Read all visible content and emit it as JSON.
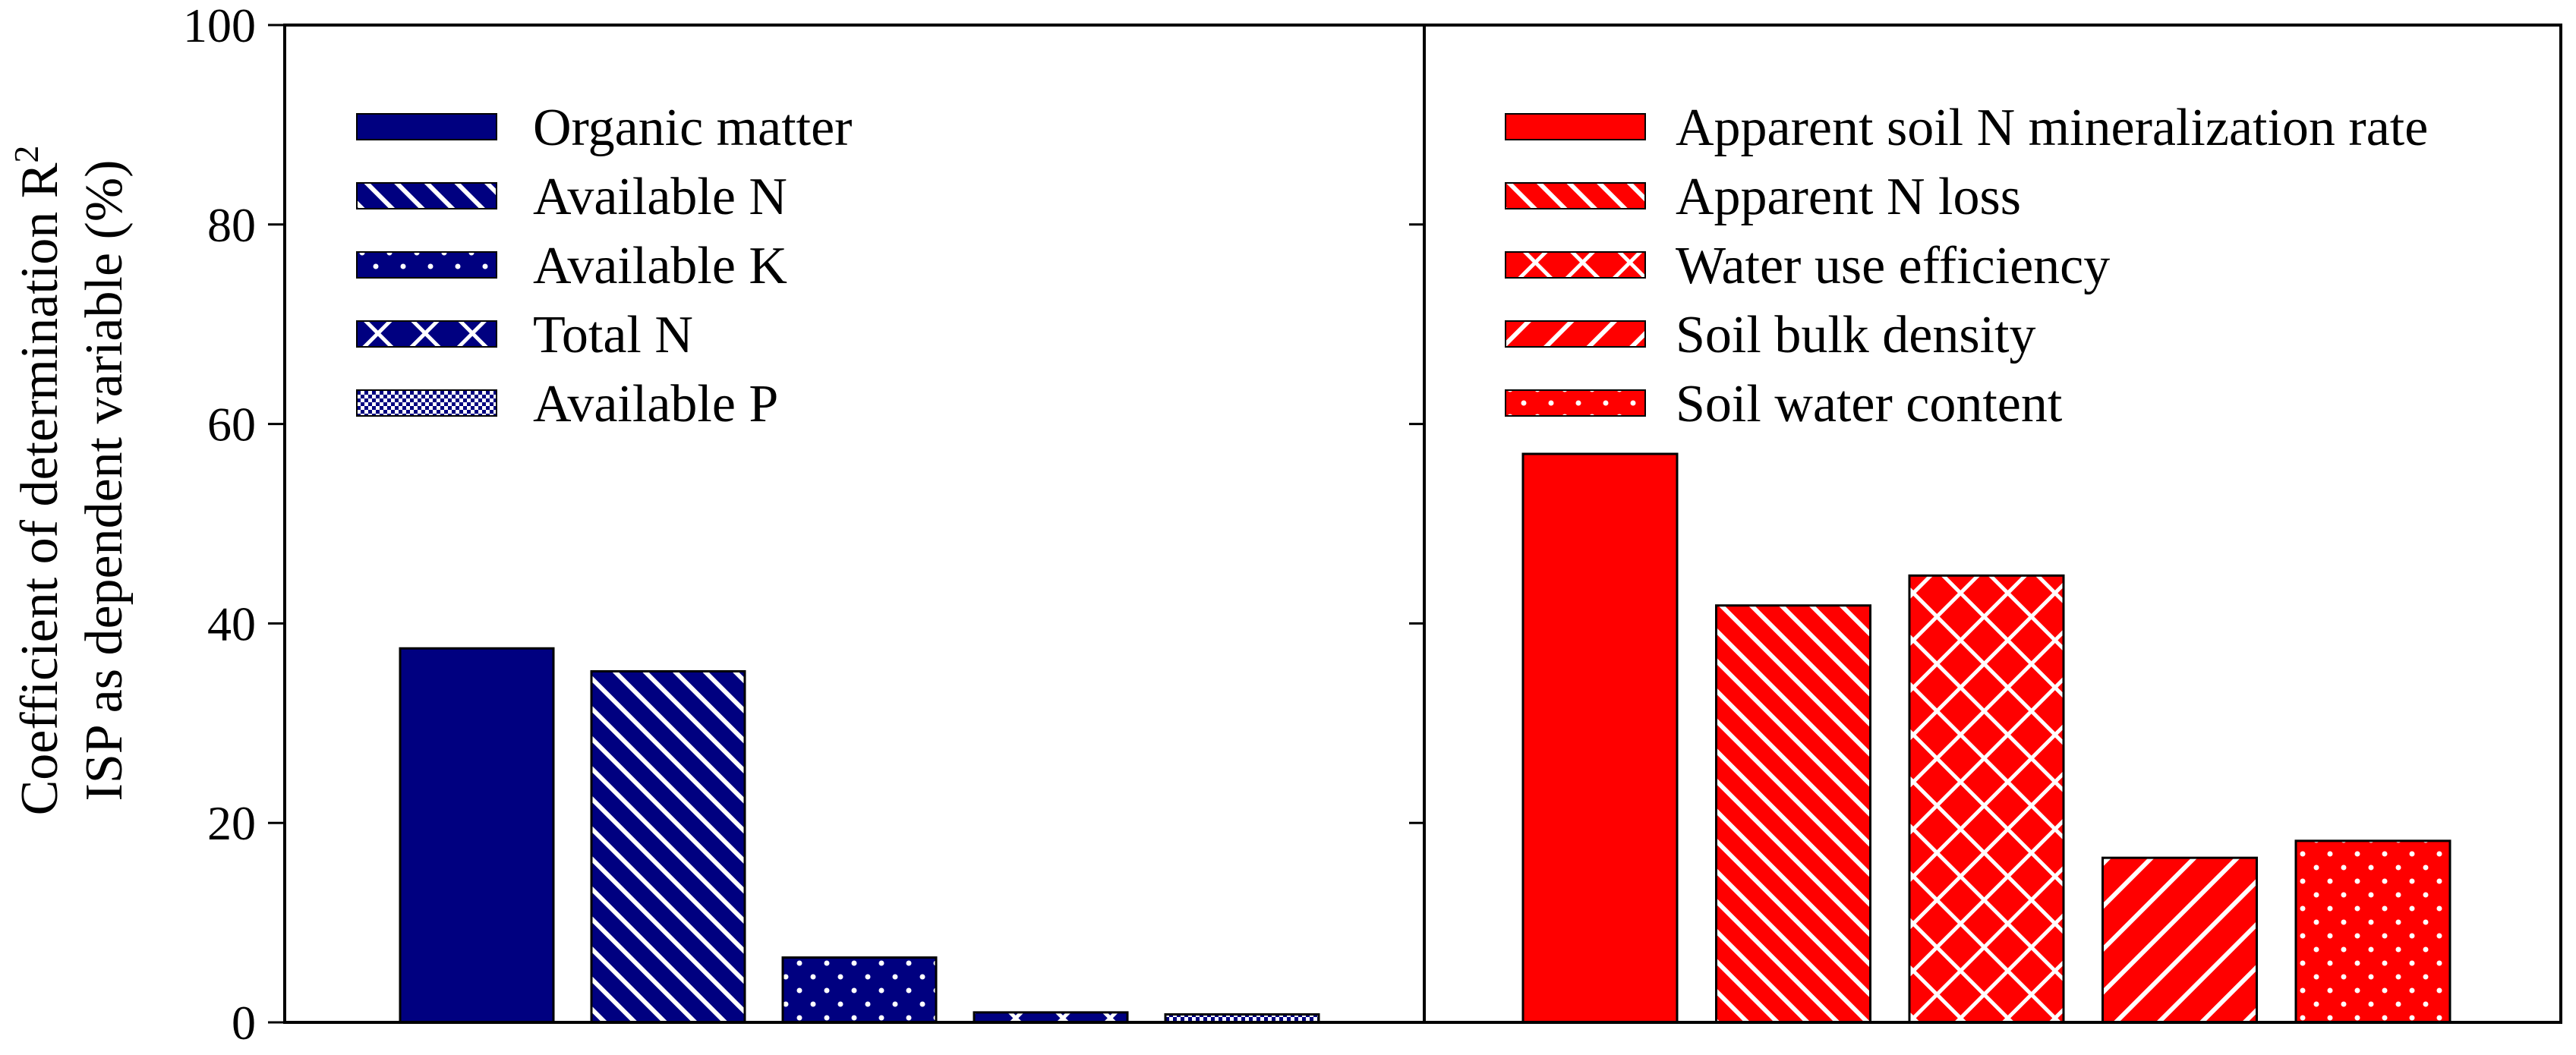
{
  "chart_data": {
    "type": "bar",
    "ylabel_line1": "Coefficient of determination R",
    "ylabel_superscript": "2",
    "ylabel_line2": "ISP as dependent variable (%)",
    "ylim": [
      0,
      100
    ],
    "yticks": [
      "0",
      "20",
      "40",
      "60",
      "80",
      "100"
    ],
    "ytick_values": [
      0,
      20,
      40,
      60,
      80,
      100
    ],
    "grid": false,
    "panels": [
      {
        "name": "left",
        "legend_position": "top-left",
        "color": "#000080",
        "categories": [
          "Organic matter",
          "Available N",
          "Available K",
          "Total N",
          "Available P"
        ],
        "patterns": [
          "solid",
          "diagonal-dense",
          "dots",
          "crosshatch",
          "fine-checker"
        ],
        "values": [
          37.5,
          35.2,
          6.5,
          1.0,
          0.8
        ]
      },
      {
        "name": "right",
        "legend_position": "top-left",
        "color": "#ff0000",
        "categories": [
          "Apparent soil N mineralization rate",
          "Apparent N loss",
          "Water use efficiency",
          "Soil bulk density",
          "Soil water content"
        ],
        "patterns": [
          "solid",
          "diagonal-dense",
          "crosshatch",
          "diagonal-back",
          "dots"
        ],
        "values": [
          57.0,
          41.8,
          44.8,
          16.5,
          18.2
        ]
      }
    ]
  }
}
